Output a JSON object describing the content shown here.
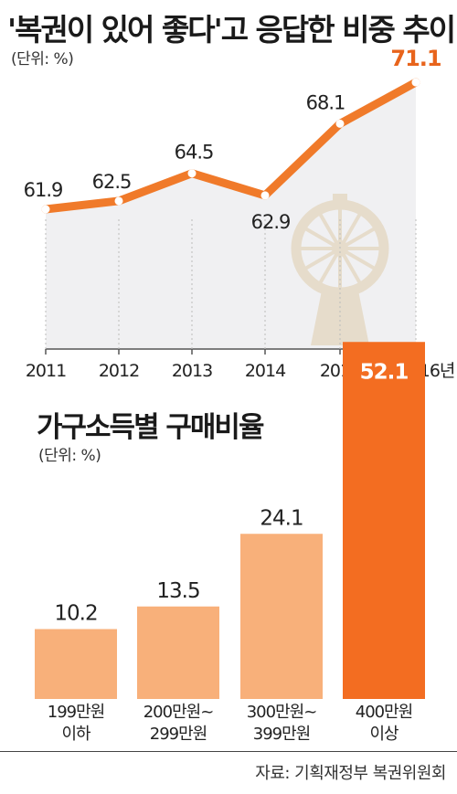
{
  "header": {
    "title": "'복권이 있어 좋다'고 응답한 비중 추이",
    "unit": "(단위: %)"
  },
  "subchart": {
    "title": "가구소득별 구매비율",
    "unit": "(단위: %)"
  },
  "source": "자료: 기획재정부 복권위원회",
  "colors": {
    "line": "#f07a2a",
    "area": "#f0f0f2",
    "bar_light": "#f8b07a",
    "bar_highlight": "#f36d21",
    "highlight_label": "#e8641c",
    "lottery_wheel": "#e6dccb"
  },
  "icons": {
    "decoration": "lottery-wheel-icon"
  },
  "chart_data": [
    {
      "type": "line",
      "x": [
        "2011",
        "2012",
        "2013",
        "2014",
        "2015",
        "2016년"
      ],
      "values": [
        61.9,
        62.5,
        64.5,
        62.9,
        68.1,
        71.1
      ],
      "value_labels": [
        "61.9",
        "62.5",
        "64.5",
        "62.9",
        "68.1",
        "71.1"
      ],
      "highlight_index": 5,
      "unit": "%"
    },
    {
      "type": "bar",
      "categories": [
        [
          "199만원",
          "이하"
        ],
        [
          "200만원~",
          "299만원"
        ],
        [
          "300만원~",
          "399만원"
        ],
        [
          "400만원",
          "이상"
        ]
      ],
      "values": [
        10.2,
        13.5,
        24.1,
        52.1
      ],
      "value_labels": [
        "10.2",
        "13.5",
        "24.1",
        "52.1"
      ],
      "highlight_index": 3,
      "unit": "%"
    }
  ]
}
